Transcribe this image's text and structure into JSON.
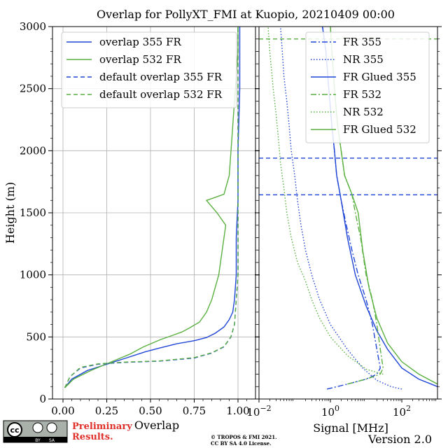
{
  "title": "Overlap for PollyXT_FMI at Kuopio, 20210409 00:00",
  "colors": {
    "blue": "#1f45d6",
    "green": "#5ab040"
  },
  "chart_data": [
    {
      "type": "line",
      "xlabel": "Overlap",
      "ylabel": "Height (m)",
      "xlim": [
        -0.06,
        1.1
      ],
      "ylim": [
        0,
        3000
      ],
      "x_ticks": [
        "0.00",
        "0.25",
        "0.50",
        "0.75",
        "1.00"
      ],
      "y_ticks": [
        "0",
        "500",
        "1000",
        "1500",
        "2000",
        "2500",
        "3000"
      ],
      "grid": true,
      "legend_position": "top-left",
      "series": [
        {
          "name": "overlap 355 FR",
          "color": "#1f45d6",
          "style": "solid",
          "points": [
            [
              0.01,
              90
            ],
            [
              0.05,
              160
            ],
            [
              0.14,
              230
            ],
            [
              0.25,
              280
            ],
            [
              0.36,
              330
            ],
            [
              0.47,
              380
            ],
            [
              0.55,
              410
            ],
            [
              0.65,
              445
            ],
            [
              0.75,
              470
            ],
            [
              0.82,
              495
            ],
            [
              0.87,
              530
            ],
            [
              0.92,
              580
            ],
            [
              0.95,
              640
            ],
            [
              0.97,
              700
            ],
            [
              0.98,
              800
            ],
            [
              0.99,
              1000
            ],
            [
              0.99,
              1300
            ],
            [
              1.0,
              1600
            ],
            [
              1.0,
              2000
            ],
            [
              1.01,
              2500
            ],
            [
              1.01,
              3000
            ]
          ]
        },
        {
          "name": "overlap 532 FR",
          "color": "#5ab040",
          "style": "solid",
          "points": [
            [
              0.01,
              90
            ],
            [
              0.06,
              160
            ],
            [
              0.16,
              230
            ],
            [
              0.26,
              290
            ],
            [
              0.38,
              360
            ],
            [
              0.46,
              420
            ],
            [
              0.56,
              480
            ],
            [
              0.62,
              510
            ],
            [
              0.68,
              540
            ],
            [
              0.72,
              570
            ],
            [
              0.78,
              620
            ],
            [
              0.82,
              700
            ],
            [
              0.85,
              800
            ],
            [
              0.87,
              900
            ],
            [
              0.89,
              1000
            ],
            [
              0.9,
              1100
            ],
            [
              0.91,
              1200
            ],
            [
              0.92,
              1300
            ],
            [
              0.93,
              1400
            ],
            [
              0.88,
              1500
            ],
            [
              0.82,
              1600
            ],
            [
              0.92,
              1650
            ],
            [
              0.95,
              1800
            ],
            [
              0.96,
              2000
            ],
            [
              0.97,
              2200
            ],
            [
              0.98,
              2400
            ],
            [
              0.99,
              2600
            ],
            [
              1.0,
              2800
            ],
            [
              1.0,
              3000
            ]
          ]
        },
        {
          "name": "default overlap 355 FR",
          "color": "#1f45d6",
          "style": "dashed",
          "points": [
            [
              0.01,
              90
            ],
            [
              0.04,
              180
            ],
            [
              0.1,
              250
            ],
            [
              0.2,
              280
            ],
            [
              0.35,
              295
            ],
            [
              0.55,
              305
            ],
            [
              0.75,
              330
            ],
            [
              0.85,
              370
            ],
            [
              0.92,
              420
            ],
            [
              0.96,
              500
            ],
            [
              0.98,
              600
            ],
            [
              0.99,
              800
            ],
            [
              1.0,
              1000
            ],
            [
              1.0,
              3000
            ]
          ]
        },
        {
          "name": "default overlap 532 FR",
          "color": "#5ab040",
          "style": "dashed",
          "points": [
            [
              0.01,
              90
            ],
            [
              0.04,
              180
            ],
            [
              0.1,
              255
            ],
            [
              0.2,
              283
            ],
            [
              0.35,
              297
            ],
            [
              0.55,
              307
            ],
            [
              0.75,
              333
            ],
            [
              0.85,
              372
            ],
            [
              0.92,
              423
            ],
            [
              0.96,
              503
            ],
            [
              0.98,
              603
            ],
            [
              0.99,
              803
            ],
            [
              1.0,
              1003
            ],
            [
              1.0,
              3000
            ]
          ]
        }
      ]
    },
    {
      "type": "line",
      "xlabel": "Signal [MHz]",
      "xscale": "log",
      "xlim": [
        0.01,
        1000
      ],
      "ylim": [
        0,
        3000
      ],
      "x_ticks": [
        {
          "value": 0.01,
          "base": "10",
          "exp": "−2"
        },
        {
          "value": 1,
          "base": "10",
          "exp": "0"
        },
        {
          "value": 100,
          "base": "10",
          "exp": "2"
        }
      ],
      "legend_position": "top-right",
      "reference_lines": [
        {
          "y": 1645,
          "color": "#1f45d6",
          "style": "dashed"
        },
        {
          "y": 1940,
          "color": "#1f45d6",
          "style": "dashed"
        },
        {
          "y": 2900,
          "color": "#5ab040",
          "style": "dashed"
        }
      ],
      "series": [
        {
          "name": "FR 355",
          "color": "#1f45d6",
          "style": "dashdot",
          "points": [
            [
              0.8,
              80
            ],
            [
              3,
              120
            ],
            [
              10,
              160
            ],
            [
              20,
              200
            ],
            [
              25,
              250
            ],
            [
              20,
              400
            ],
            [
              15,
              600
            ],
            [
              10,
              800
            ],
            [
              6,
              1000
            ],
            [
              4,
              1200
            ],
            [
              2.8,
              1400
            ],
            [
              2,
              1600
            ],
            [
              1.5,
              1800
            ],
            [
              1.3,
              2000
            ],
            [
              1.1,
              2200
            ],
            [
              0.9,
              2500
            ],
            [
              0.75,
              2800
            ],
            [
              0.6,
              3000
            ]
          ]
        },
        {
          "name": "NR 355",
          "color": "#1f45d6",
          "style": "dotted",
          "points": [
            [
              100,
              80
            ],
            [
              50,
              100
            ],
            [
              20,
              150
            ],
            [
              8,
              250
            ],
            [
              3,
              400
            ],
            [
              1,
              600
            ],
            [
              0.5,
              800
            ],
            [
              0.3,
              1000
            ],
            [
              0.2,
              1200
            ],
            [
              0.15,
              1400
            ],
            [
              0.12,
              1600
            ],
            [
              0.1,
              1800
            ],
            [
              0.08,
              2000
            ],
            [
              0.07,
              2200
            ],
            [
              0.06,
              2400
            ],
            [
              0.05,
              2600
            ],
            [
              0.045,
              2800
            ],
            [
              0.04,
              3000
            ]
          ]
        },
        {
          "name": "FR Glued 355",
          "color": "#1f45d6",
          "style": "solid",
          "points": [
            [
              1000,
              100
            ],
            [
              300,
              160
            ],
            [
              100,
              250
            ],
            [
              40,
              400
            ],
            [
              20,
              550
            ],
            [
              10,
              750
            ],
            [
              5,
              1000
            ],
            [
              3,
              1300
            ],
            [
              2,
              1600
            ],
            [
              1.5,
              1800
            ],
            [
              1.3,
              2000
            ],
            [
              1.1,
              2200
            ],
            [
              0.9,
              2500
            ],
            [
              0.75,
              2800
            ],
            [
              0.6,
              3000
            ]
          ]
        },
        {
          "name": "FR 532",
          "color": "#5ab040",
          "style": "dashdot",
          "points": [
            [
              3,
              120
            ],
            [
              10,
              160
            ],
            [
              25,
              200
            ],
            [
              30,
              250
            ],
            [
              25,
              400
            ],
            [
              20,
              600
            ],
            [
              15,
              800
            ],
            [
              10,
              1000
            ],
            [
              7,
              1300
            ],
            [
              5,
              1500
            ],
            [
              4,
              1650
            ],
            [
              2.5,
              1800
            ],
            [
              2,
              2000
            ],
            [
              1.6,
              2200
            ],
            [
              1.3,
              2500
            ],
            [
              1.1,
              2800
            ],
            [
              1,
              3000
            ]
          ]
        },
        {
          "name": "NR 532",
          "color": "#5ab040",
          "style": "dotted",
          "points": [
            [
              30,
              200
            ],
            [
              10,
              240
            ],
            [
              3,
              350
            ],
            [
              1,
              500
            ],
            [
              0.5,
              650
            ],
            [
              0.3,
              800
            ],
            [
              0.2,
              950
            ],
            [
              0.12,
              1100
            ],
            [
              0.08,
              1300
            ],
            [
              0.06,
              1500
            ],
            [
              0.05,
              1700
            ],
            [
              0.04,
              1900
            ],
            [
              0.035,
              2100
            ],
            [
              0.03,
              2300
            ],
            [
              0.025,
              2500
            ],
            [
              0.02,
              2800
            ],
            [
              0.018,
              3000
            ]
          ]
        },
        {
          "name": "FR Glued 532",
          "color": "#5ab040",
          "style": "solid",
          "points": [
            [
              1000,
              120
            ],
            [
              300,
              200
            ],
            [
              100,
              300
            ],
            [
              40,
              450
            ],
            [
              20,
              650
            ],
            [
              12,
              900
            ],
            [
              8,
              1200
            ],
            [
              6,
              1500
            ],
            [
              4,
              1650
            ],
            [
              2.5,
              1800
            ],
            [
              2,
              2000
            ],
            [
              1.6,
              2200
            ],
            [
              1.3,
              2500
            ],
            [
              1.1,
              2800
            ],
            [
              1,
              3000
            ]
          ]
        }
      ]
    }
  ],
  "footer": {
    "cc_label": "cc",
    "cc_by": "BY",
    "cc_sa": "SA",
    "preliminary_line1": "Preliminary",
    "preliminary_line2": "Results.",
    "copyright_line1": "© TROPOS & FMI 2021.",
    "copyright_line2": "CC BY SA 4.0 License.",
    "version": "Version 2.0"
  }
}
